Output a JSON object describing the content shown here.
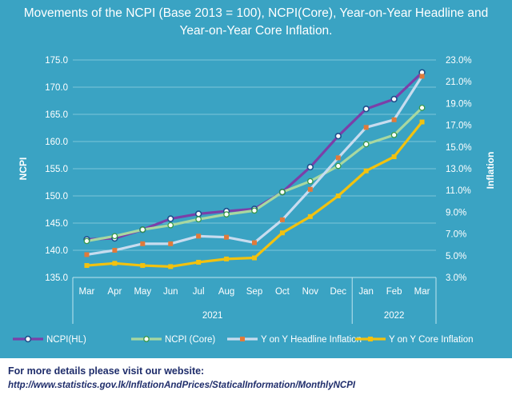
{
  "chart_data": {
    "type": "line",
    "title_line1": "Movements of the NCPI (Base 2013 = 100), NCPI(Core), Year-on-Year Headline and",
    "title_line2": "Year-on-Year Core Inflation.",
    "categories": [
      "Mar",
      "Apr",
      "May",
      "Jun",
      "Jul",
      "Aug",
      "Sep",
      "Oct",
      "Nov",
      "Dec",
      "Jan",
      "Feb",
      "Mar"
    ],
    "years": [
      {
        "label": "2021",
        "from": 0,
        "to": 9
      },
      {
        "label": "2022",
        "from": 10,
        "to": 12
      }
    ],
    "ylabel_left": "NCPI",
    "ylabel_right": "Inflation",
    "ylim_left": [
      135,
      175
    ],
    "yticks_left": [
      "135.0",
      "140.0",
      "145.0",
      "150.0",
      "155.0",
      "160.0",
      "165.0",
      "170.0",
      "175.0"
    ],
    "ylim_right": [
      3,
      23
    ],
    "yticks_right": [
      "3.0%",
      "5.0%",
      "7.0%",
      "9.0%",
      "11.0%",
      "13.0%",
      "15.0%",
      "17.0%",
      "19.0%",
      "21.0%",
      "23.0%"
    ],
    "series": [
      {
        "name": "NCPI(HL)",
        "axis": "left",
        "color": "#7b3fa8",
        "marker": "#1f4f8c",
        "values": [
          142.0,
          142.2,
          143.8,
          145.8,
          146.7,
          147.2,
          147.6,
          150.7,
          155.3,
          161.0,
          166.0,
          167.8,
          172.7
        ]
      },
      {
        "name": "NCPI (Core)",
        "axis": "left",
        "color": "#a8d8a0",
        "marker": "#3a9a4a",
        "values": [
          141.7,
          142.6,
          143.8,
          144.6,
          145.7,
          146.6,
          147.3,
          150.7,
          152.7,
          155.5,
          159.5,
          161.2,
          166.2
        ]
      },
      {
        "name": "Y on Y Headline Inflation",
        "axis": "right",
        "color": "#c8dcef",
        "marker": "#e07a3a",
        "values": [
          5.1,
          5.5,
          6.1,
          6.1,
          6.8,
          6.7,
          6.2,
          8.3,
          11.1,
          14.0,
          16.8,
          17.5,
          21.5
        ]
      },
      {
        "name": "Y on Y Core Inflation",
        "axis": "right",
        "color": "#f2c20f",
        "marker": "#f2c20f",
        "values": [
          4.1,
          4.3,
          4.1,
          4.0,
          4.4,
          4.7,
          4.8,
          7.1,
          8.6,
          10.5,
          12.8,
          14.1,
          17.3
        ]
      }
    ]
  },
  "footer": {
    "line1": "For more details please visit our website:",
    "line2": "http://www.statistics.gov.lk/InflationAndPrices/StaticalInformation/MonthlyNCPI"
  }
}
